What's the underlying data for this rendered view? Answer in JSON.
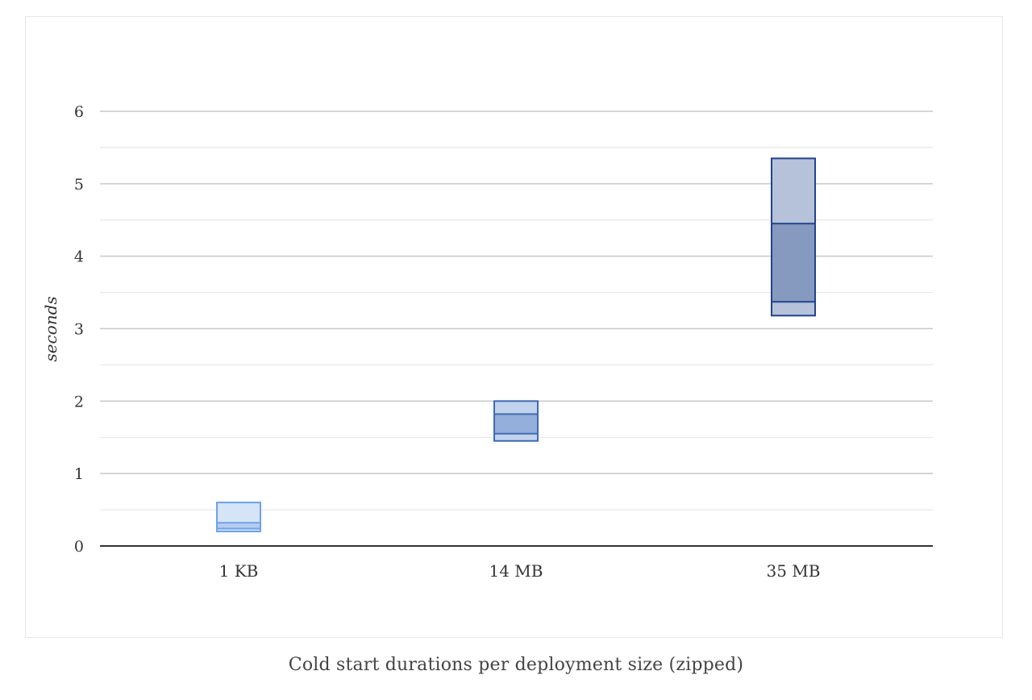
{
  "caption": "Cold start durations per deployment size (zipped)",
  "chart_data": {
    "type": "box",
    "categories": [
      "1 KB",
      "14 MB",
      "35 MB"
    ],
    "ylabel": "seconds",
    "xlabel": "",
    "ylim": [
      0,
      6
    ],
    "y_ticks": [
      "0",
      "1",
      "2",
      "3",
      "4",
      "5",
      "6"
    ],
    "minor_grid": true,
    "boxes": [
      {
        "category": "1 KB",
        "min": 0.2,
        "q1": 0.24,
        "median": 0.32,
        "max": 0.6
      },
      {
        "category": "14 MB",
        "min": 1.45,
        "q1": 1.55,
        "median": 1.82,
        "max": 2.0
      },
      {
        "category": "35 MB",
        "min": 3.18,
        "q1": 3.37,
        "median": 4.45,
        "max": 5.35
      }
    ],
    "colors": {
      "stroke": [
        "#6fa2e8",
        "#3f6bb3",
        "#22438a"
      ],
      "outer_fill": [
        "#d6e4f8",
        "#c2d2ec",
        "#b5c2da"
      ],
      "inner_fill": [
        "#b5cdf1",
        "#94afdb",
        "#8699bf"
      ],
      "grid_major": "#c8c8c8",
      "grid_minor": "#e2e2e2",
      "axis": "#333333",
      "text": "#333333"
    }
  }
}
